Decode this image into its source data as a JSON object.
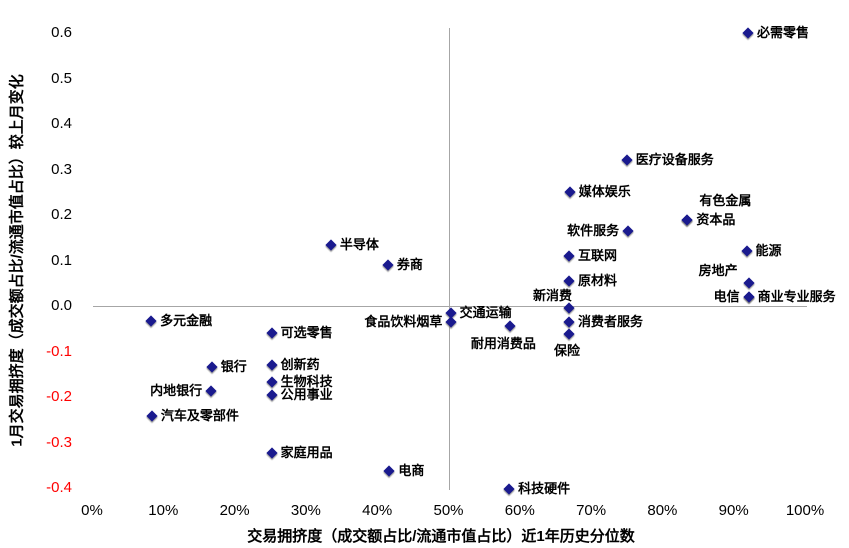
{
  "chart_data": {
    "type": "scatter",
    "title": "",
    "xlabel": "交易拥挤度（成交额占比/流通市值占比）近1年历史分位数",
    "ylabel": "1月交易拥挤度（成交额占比/流通市值占比）较上月变化",
    "xlim": [
      0,
      100
    ],
    "ylim": [
      -0.4,
      0.6
    ],
    "x_ticks": [
      "0%",
      "10%",
      "20%",
      "30%",
      "40%",
      "50%",
      "60%",
      "70%",
      "80%",
      "90%",
      "100%"
    ],
    "y_ticks": [
      "0.6",
      "0.5",
      "0.4",
      "0.3",
      "0.2",
      "0.1",
      "0.0",
      "-0.1",
      "-0.2",
      "-0.3",
      "-0.4"
    ],
    "grid": "off",
    "legend": "none",
    "reference_lines": {
      "horizontal_y": 0,
      "vertical_x": 50
    },
    "marker_color": "#1a1a8e",
    "negative_tick_color": "#ff0000",
    "axis_line_color": "#a6a6a6",
    "points": [
      {
        "label": "必需零售",
        "x": 92,
        "y": 0.6,
        "label_pos": "right"
      },
      {
        "label": "医疗设备服务",
        "x": 75,
        "y": 0.32,
        "label_pos": "right"
      },
      {
        "label": "媒体娱乐",
        "x": 67,
        "y": 0.25,
        "label_pos": "right"
      },
      {
        "label": "有色金属",
        "x": 83.5,
        "y": 0.19,
        "label_pos": "top-right"
      },
      {
        "label": "资本品",
        "x": 83.5,
        "y": 0.19,
        "label_pos": "right"
      },
      {
        "label": "软件服务",
        "x": 75.2,
        "y": 0.165,
        "label_pos": "left"
      },
      {
        "label": "半导体",
        "x": 33.5,
        "y": 0.135,
        "label_pos": "right"
      },
      {
        "label": "能源",
        "x": 91.8,
        "y": 0.12,
        "label_pos": "right"
      },
      {
        "label": "互联网",
        "x": 66.9,
        "y": 0.11,
        "label_pos": "right"
      },
      {
        "label": "券商",
        "x": 41.5,
        "y": 0.09,
        "label_pos": "right"
      },
      {
        "label": "原材料",
        "x": 66.9,
        "y": 0.055,
        "label_pos": "right"
      },
      {
        "label": "房地产",
        "x": 92.1,
        "y": 0.05,
        "label_pos": "top-left",
        "dx": -14
      },
      {
        "label": "电信",
        "x": 92.1,
        "y": 0.02,
        "label_pos": "left"
      },
      {
        "label": "商业专业服务",
        "x": 92.1,
        "y": 0.02,
        "label_pos": "right"
      },
      {
        "label": "新消费",
        "x": 66.9,
        "y": -0.005,
        "label_pos": "top-left"
      },
      {
        "label": "交通运输",
        "x": 50.3,
        "y": -0.015,
        "label_pos": "right"
      },
      {
        "label": "食品饮料烟草",
        "x": 50.4,
        "y": -0.035,
        "label_pos": "left"
      },
      {
        "label": "多元金融",
        "x": 8.3,
        "y": -0.033,
        "label_pos": "right"
      },
      {
        "label": "消费者服务",
        "x": 66.9,
        "y": -0.035,
        "label_pos": "right"
      },
      {
        "label": "耐用消费品",
        "x": 58.6,
        "y": -0.045,
        "label_pos": "bottom-left"
      },
      {
        "label": "可选零售",
        "x": 25.2,
        "y": -0.06,
        "label_pos": "right"
      },
      {
        "label": "保险",
        "x": 66.9,
        "y": -0.062,
        "label_pos": "bottom"
      },
      {
        "label": "创新药",
        "x": 25.2,
        "y": -0.13,
        "label_pos": "right"
      },
      {
        "label": "银行",
        "x": 16.8,
        "y": -0.135,
        "label_pos": "right"
      },
      {
        "label": "生物科技",
        "x": 25.2,
        "y": -0.167,
        "label_pos": "right"
      },
      {
        "label": "内地银行",
        "x": 16.7,
        "y": -0.187,
        "label_pos": "left"
      },
      {
        "label": "公用事业",
        "x": 25.2,
        "y": -0.196,
        "label_pos": "right"
      },
      {
        "label": "汽车及零部件",
        "x": 8.4,
        "y": -0.242,
        "label_pos": "right"
      },
      {
        "label": "家庭用品",
        "x": 25.2,
        "y": -0.323,
        "label_pos": "right"
      },
      {
        "label": "电商",
        "x": 41.7,
        "y": -0.363,
        "label_pos": "right"
      },
      {
        "label": "科技硬件",
        "x": 58.5,
        "y": -0.402,
        "label_pos": "right"
      }
    ]
  }
}
